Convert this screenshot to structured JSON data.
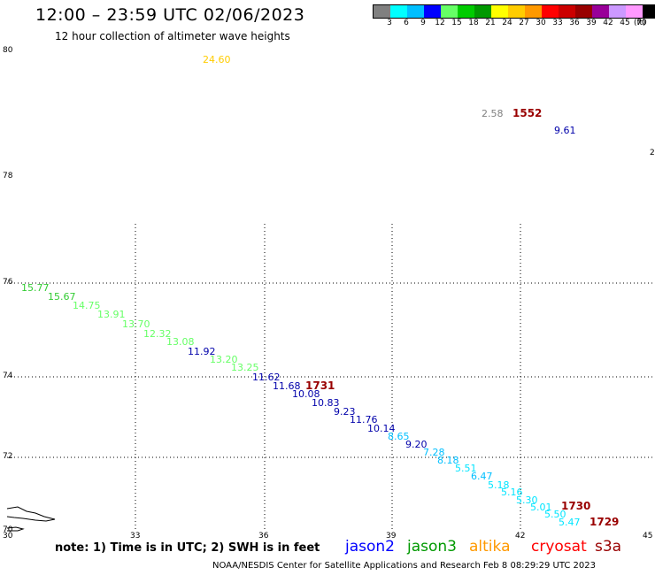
{
  "header": {
    "title": "12:00 – 23:59 UTC 02/06/2023",
    "subtitle": "12 hour collection of altimeter wave heights"
  },
  "colorbar": {
    "colors": [
      "#808080",
      "#00ffff",
      "#00bfff",
      "#0000ff",
      "#66ff66",
      "#00cc00",
      "#009900",
      "#ffff00",
      "#ffcc00",
      "#ff9900",
      "#ff0000",
      "#cc0000",
      "#990000",
      "#990099",
      "#cc99ff",
      "#ff99ff",
      "#000000"
    ],
    "ticks": [
      "3",
      "6",
      "9",
      "12",
      "15",
      "18",
      "21",
      "24",
      "27",
      "30",
      "33",
      "36",
      "39",
      "42",
      "45",
      "70"
    ],
    "unit": "(ft)"
  },
  "map": {
    "y_ticks": [
      "80",
      "78",
      "76",
      "74",
      "72",
      "70"
    ],
    "x_ticks": [
      "30",
      "33",
      "36",
      "39",
      "42",
      "45"
    ],
    "partial_label": "2"
  },
  "measurements": [
    {
      "text": "24.60",
      "color": "#ffcc00"
    },
    {
      "text": "2.58",
      "color": "#808080"
    },
    {
      "text": "9.61",
      "color": "#0000aa"
    },
    {
      "text": "15.77",
      "color": "#33cc33"
    },
    {
      "text": "15.67",
      "color": "#33cc33"
    },
    {
      "text": "14.75",
      "color": "#66ff66"
    },
    {
      "text": "13.91",
      "color": "#66ff66"
    },
    {
      "text": "13.70",
      "color": "#66ff66"
    },
    {
      "text": "12.32",
      "color": "#66ff66"
    },
    {
      "text": "13.08",
      "color": "#66ff66"
    },
    {
      "text": "11.92",
      "color": "#0000aa"
    },
    {
      "text": "13.20",
      "color": "#66ff66"
    },
    {
      "text": "13.25",
      "color": "#66ff66"
    },
    {
      "text": "11.62",
      "color": "#0000aa"
    },
    {
      "text": "11.68",
      "color": "#0000aa"
    },
    {
      "text": "10.08",
      "color": "#0000aa"
    },
    {
      "text": "10.83",
      "color": "#0000aa"
    },
    {
      "text": "9.23",
      "color": "#0000aa"
    },
    {
      "text": "11.76",
      "color": "#0000aa"
    },
    {
      "text": "10.14",
      "color": "#0000aa"
    },
    {
      "text": "8.65",
      "color": "#00bfff"
    },
    {
      "text": "9.20",
      "color": "#0000aa"
    },
    {
      "text": "7.28",
      "color": "#00bfff"
    },
    {
      "text": "8.18",
      "color": "#00bfff"
    },
    {
      "text": "5.51",
      "color": "#00e5ff"
    },
    {
      "text": "6.47",
      "color": "#00bfff"
    },
    {
      "text": "5.18",
      "color": "#00e5ff"
    },
    {
      "text": "5.16",
      "color": "#00e5ff"
    },
    {
      "text": "5.30",
      "color": "#00e5ff"
    },
    {
      "text": "5.01",
      "color": "#00e5ff"
    },
    {
      "text": "5.50",
      "color": "#00e5ff"
    },
    {
      "text": "5.47",
      "color": "#00e5ff"
    }
  ],
  "times": [
    {
      "text": "1552",
      "color": "#990000"
    },
    {
      "text": "1731",
      "color": "#990000"
    },
    {
      "text": "1730",
      "color": "#990000"
    },
    {
      "text": "1729",
      "color": "#990000"
    }
  ],
  "footer": {
    "note": "note:  1) Time is in UTC;  2) SWH is in feet",
    "satellites": [
      {
        "name": "jason2",
        "color": "#0000ff"
      },
      {
        "name": "jason3",
        "color": "#009900"
      },
      {
        "name": "altika",
        "color": "#ff9900"
      },
      {
        "name": "cryosat",
        "color": "#ff0000"
      },
      {
        "name": "s3a",
        "color": "#990000"
      }
    ],
    "credit": "NOAA/NESDIS Center for Satellite Applications and Research    Feb  8 08:29:29 UTC 2023"
  }
}
